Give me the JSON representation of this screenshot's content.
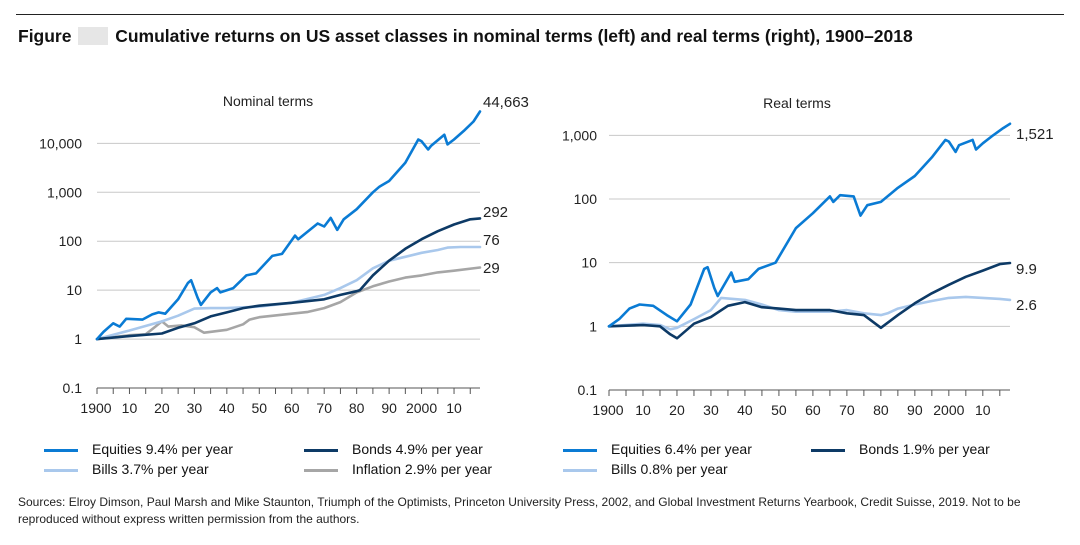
{
  "figure": {
    "label": "Figure",
    "title": "Cumulative returns on US asset classes in nominal terms (left) and real terms (right), 1900–2018"
  },
  "colors": {
    "equities": "#0a7bd4",
    "bonds": "#0d3a66",
    "bills": "#a9c8ec",
    "inflation": "#a6a6a6",
    "grid": "#c8c8c8",
    "axis": "#555555"
  },
  "chart_data": [
    {
      "type": "line",
      "id": "nominal",
      "title": "Nominal terms",
      "yscale": "log",
      "ylim": [
        0.1,
        70000
      ],
      "xlim": [
        1900,
        2018
      ],
      "yticks": [
        0.1,
        1,
        10,
        100,
        1000,
        10000
      ],
      "ytick_labels": [
        "0.1",
        "1",
        "10",
        "100",
        "1,000",
        "10,000"
      ],
      "xtick_labels": [
        "1900",
        "10",
        "20",
        "30",
        "40",
        "50",
        "60",
        "70",
        "80",
        "90",
        "2000",
        "10"
      ],
      "series": [
        {
          "name": "Equities",
          "key": "equities",
          "end_label": "44,663",
          "x": [
            1900,
            1902,
            1905,
            1907,
            1909,
            1914,
            1917,
            1919,
            1921,
            1925,
            1928,
            1929,
            1931,
            1932,
            1935,
            1937,
            1938,
            1942,
            1946,
            1949,
            1954,
            1957,
            1961,
            1962,
            1966,
            1968,
            1970,
            1972,
            1974,
            1976,
            1980,
            1985,
            1987,
            1990,
            1995,
            1999,
            2000,
            2002,
            2003,
            2007,
            2008,
            2010,
            2013,
            2016,
            2018
          ],
          "y": [
            1,
            1.4,
            2.1,
            1.8,
            2.6,
            2.5,
            3.2,
            3.5,
            3.3,
            6.5,
            14,
            16,
            7,
            5,
            9,
            11,
            9,
            11,
            20,
            22,
            50,
            55,
            130,
            110,
            180,
            230,
            200,
            300,
            170,
            280,
            450,
            1000,
            1300,
            1700,
            4000,
            12000,
            11000,
            7500,
            9000,
            15000,
            9500,
            12000,
            18000,
            28000,
            44663
          ]
        },
        {
          "name": "Bonds",
          "key": "bonds",
          "end_label": "292",
          "x": [
            1900,
            1910,
            1920,
            1925,
            1930,
            1935,
            1940,
            1945,
            1950,
            1960,
            1970,
            1975,
            1980,
            1981,
            1985,
            1990,
            1995,
            2000,
            2005,
            2010,
            2015,
            2018
          ],
          "y": [
            1,
            1.15,
            1.3,
            1.7,
            2.1,
            2.9,
            3.5,
            4.3,
            4.8,
            5.5,
            6.5,
            8,
            9.5,
            10,
            20,
            40,
            70,
            110,
            160,
            220,
            280,
            292
          ]
        },
        {
          "name": "Bills",
          "key": "bills",
          "end_label": "76",
          "x": [
            1900,
            1910,
            1920,
            1925,
            1930,
            1935,
            1940,
            1950,
            1960,
            1970,
            1975,
            1980,
            1985,
            1990,
            1995,
            2000,
            2005,
            2008,
            2012,
            2018
          ],
          "y": [
            1,
            1.5,
            2.3,
            3,
            4.2,
            4.3,
            4.3,
            4.6,
            5.5,
            8,
            11,
            16,
            28,
            40,
            48,
            58,
            66,
            74,
            76,
            76
          ]
        },
        {
          "name": "Inflation",
          "key": "inflation",
          "end_label": "29",
          "x": [
            1900,
            1910,
            1915,
            1918,
            1920,
            1922,
            1926,
            1930,
            1933,
            1940,
            1945,
            1947,
            1950,
            1960,
            1965,
            1970,
            1975,
            1980,
            1985,
            1990,
            1995,
            2000,
            2005,
            2010,
            2018
          ],
          "y": [
            1,
            1.2,
            1.25,
            1.8,
            2.3,
            1.8,
            1.9,
            1.75,
            1.35,
            1.55,
            2,
            2.5,
            2.8,
            3.3,
            3.6,
            4.3,
            5.7,
            9,
            12,
            15,
            18,
            20,
            23,
            25,
            29
          ]
        }
      ]
    },
    {
      "type": "line",
      "id": "real",
      "title": "Real terms",
      "yscale": "log",
      "ylim": [
        0.1,
        3000
      ],
      "xlim": [
        1900,
        2018
      ],
      "yticks": [
        0.1,
        1,
        10,
        100,
        1000
      ],
      "ytick_labels": [
        "0.1",
        "1",
        "10",
        "100",
        "1,000"
      ],
      "xtick_labels": [
        "1900",
        "10",
        "20",
        "30",
        "40",
        "50",
        "60",
        "70",
        "80",
        "90",
        "2000",
        "10"
      ],
      "series": [
        {
          "name": "Equities",
          "key": "equities",
          "end_label": "1,521",
          "x": [
            1900,
            1903,
            1906,
            1909,
            1913,
            1917,
            1920,
            1924,
            1928,
            1929,
            1931,
            1932,
            1936,
            1937,
            1941,
            1944,
            1949,
            1955,
            1960,
            1965,
            1966,
            1968,
            1972,
            1974,
            1976,
            1980,
            1985,
            1990,
            1995,
            1999,
            2000,
            2002,
            2003,
            2007,
            2008,
            2010,
            2013,
            2016,
            2018
          ],
          "y": [
            1,
            1.3,
            1.9,
            2.2,
            2.1,
            1.5,
            1.2,
            2.2,
            8,
            8.5,
            4,
            3,
            7,
            5,
            5.5,
            8,
            10,
            35,
            60,
            110,
            90,
            115,
            110,
            55,
            80,
            90,
            150,
            230,
            450,
            850,
            800,
            550,
            700,
            850,
            600,
            750,
            1000,
            1300,
            1521
          ]
        },
        {
          "name": "Bonds",
          "key": "bonds",
          "end_label": "9.9",
          "x": [
            1900,
            1910,
            1915,
            1918,
            1920,
            1925,
            1930,
            1935,
            1940,
            1945,
            1950,
            1955,
            1960,
            1965,
            1970,
            1975,
            1980,
            1985,
            1990,
            1995,
            2000,
            2005,
            2010,
            2015,
            2018
          ],
          "y": [
            1,
            1.05,
            1.0,
            0.75,
            0.65,
            1.1,
            1.4,
            2.1,
            2.4,
            2.0,
            1.9,
            1.8,
            1.8,
            1.8,
            1.6,
            1.5,
            0.95,
            1.5,
            2.3,
            3.3,
            4.5,
            6,
            7.5,
            9.5,
            9.9
          ]
        },
        {
          "name": "Bills",
          "key": "bills",
          "end_label": "2.6",
          "x": [
            1900,
            1910,
            1915,
            1918,
            1920,
            1925,
            1930,
            1933,
            1940,
            1945,
            1950,
            1955,
            1960,
            1965,
            1970,
            1975,
            1980,
            1982,
            1985,
            1990,
            1995,
            2000,
            2005,
            2010,
            2015,
            2018
          ],
          "y": [
            1,
            1.1,
            1.05,
            0.9,
            0.95,
            1.3,
            1.8,
            2.8,
            2.6,
            2.2,
            1.8,
            1.7,
            1.7,
            1.7,
            1.8,
            1.6,
            1.5,
            1.6,
            1.9,
            2.2,
            2.5,
            2.8,
            2.9,
            2.8,
            2.7,
            2.6
          ]
        }
      ]
    }
  ],
  "legend_left": [
    {
      "key": "equities",
      "text": "Equities  9.4% per year"
    },
    {
      "key": "bonds",
      "text": "Bonds  4.9% per year"
    },
    {
      "key": "bills",
      "text": "Bills  3.7% per year"
    },
    {
      "key": "inflation",
      "text": "Inflation  2.9% per year"
    }
  ],
  "legend_right": [
    {
      "key": "equities",
      "text": "Equities  6.4% per year"
    },
    {
      "key": "bonds",
      "text": "Bonds  1.9% per year"
    },
    {
      "key": "bills",
      "text": "Bills 0.8% per year"
    }
  ],
  "source": "Sources: Elroy Dimson, Paul Marsh and Mike Staunton, Triumph of the Optimists, Princeton University Press, 2002, and Global Investment Returns Yearbook, Credit Suisse, 2019. Not to be reproduced without express written permission from the authors."
}
